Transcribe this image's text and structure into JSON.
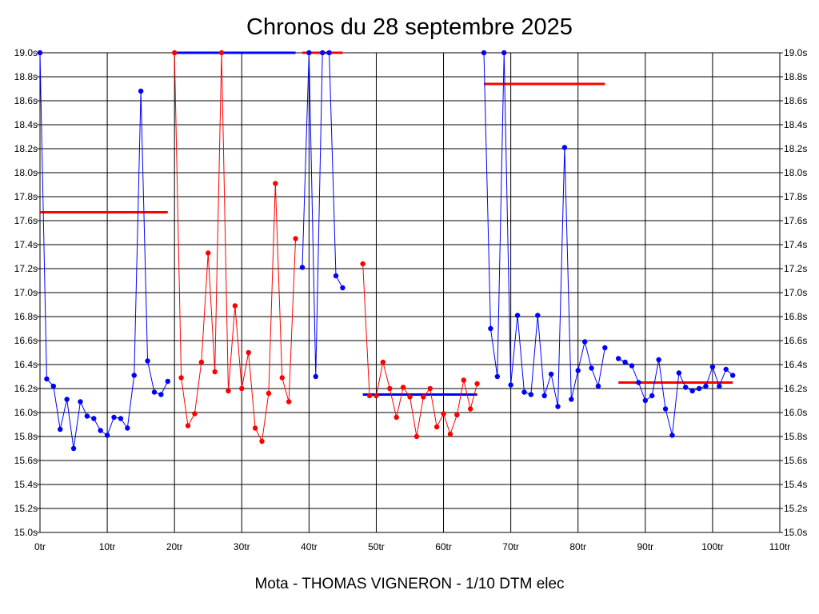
{
  "chart_data": {
    "type": "line",
    "title": "Chronos du 28 septembre 2025",
    "caption": "Mota - THOMAS VIGNERON - 1/10 DTM elec",
    "xlim": [
      0,
      110
    ],
    "ylim": [
      15.0,
      19.0
    ],
    "x_ticks": [
      {
        "value": 0,
        "label": "0tr"
      },
      {
        "value": 10,
        "label": "10tr"
      },
      {
        "value": 20,
        "label": "20tr"
      },
      {
        "value": 30,
        "label": "30tr"
      },
      {
        "value": 40,
        "label": "40tr"
      },
      {
        "value": 50,
        "label": "50tr"
      },
      {
        "value": 60,
        "label": "60tr"
      },
      {
        "value": 70,
        "label": "70tr"
      },
      {
        "value": 80,
        "label": "80tr"
      },
      {
        "value": 90,
        "label": "90tr"
      },
      {
        "value": 100,
        "label": "100tr"
      },
      {
        "value": 110,
        "label": "110tr"
      }
    ],
    "y_ticks": [
      {
        "value": 15.0,
        "label": "15.0s"
      },
      {
        "value": 15.2,
        "label": "15.2s"
      },
      {
        "value": 15.4,
        "label": "15.4s"
      },
      {
        "value": 15.6,
        "label": "15.6s"
      },
      {
        "value": 15.8,
        "label": "15.8s"
      },
      {
        "value": 16.0,
        "label": "16.0s"
      },
      {
        "value": 16.2,
        "label": "16.2s"
      },
      {
        "value": 16.4,
        "label": "16.4s"
      },
      {
        "value": 16.6,
        "label": "16.6s"
      },
      {
        "value": 16.8,
        "label": "16.8s"
      },
      {
        "value": 17.0,
        "label": "17.0s"
      },
      {
        "value": 17.2,
        "label": "17.2s"
      },
      {
        "value": 17.4,
        "label": "17.4s"
      },
      {
        "value": 17.6,
        "label": "17.6s"
      },
      {
        "value": 17.8,
        "label": "17.8s"
      },
      {
        "value": 18.0,
        "label": "18.0s"
      },
      {
        "value": 18.2,
        "label": "18.2s"
      },
      {
        "value": 18.4,
        "label": "18.4s"
      },
      {
        "value": 18.6,
        "label": "18.6s"
      },
      {
        "value": 18.8,
        "label": "18.8s"
      },
      {
        "value": 19.0,
        "label": "19.0s"
      }
    ],
    "grid": true,
    "colors": {
      "blue": "#0000ff",
      "red": "#ff0000",
      "grid": "#000000"
    },
    "series": [
      {
        "color": "#0000ff",
        "x": [
          0,
          1,
          2,
          3,
          4,
          5,
          6,
          7,
          8,
          9,
          10,
          11,
          12,
          13,
          14,
          15,
          16,
          17,
          18,
          19
        ],
        "y": [
          19.0,
          16.28,
          16.22,
          15.86,
          16.11,
          15.7,
          16.09,
          15.97,
          15.95,
          15.85,
          15.81,
          15.96,
          15.95,
          15.87,
          16.31,
          18.68,
          16.43,
          16.17,
          16.15,
          16.26
        ]
      },
      {
        "color": "#ff0000",
        "x": [
          20,
          21,
          22,
          23,
          24,
          25,
          26,
          27,
          28,
          29,
          30,
          31,
          32,
          33,
          34,
          35,
          36,
          37,
          38
        ],
        "y": [
          19.0,
          16.29,
          15.89,
          15.99,
          16.42,
          17.33,
          16.34,
          19.0,
          16.18,
          16.89,
          16.2,
          16.5,
          15.87,
          15.76,
          16.16,
          17.91,
          16.29,
          16.09,
          17.45
        ]
      },
      {
        "color": "#0000ff",
        "x": [
          39,
          40,
          41,
          42,
          43,
          44,
          45
        ],
        "y": [
          17.21,
          19.0,
          16.3,
          19.0,
          19.0,
          17.14,
          17.04
        ]
      },
      {
        "color": "#ff0000",
        "x": [
          48,
          49,
          50,
          51,
          52,
          53,
          54,
          55,
          56,
          57,
          58,
          59,
          60,
          61,
          62,
          63,
          64,
          65
        ],
        "y": [
          17.24,
          16.14,
          16.14,
          16.42,
          16.2,
          15.96,
          16.21,
          16.13,
          15.8,
          16.13,
          16.2,
          15.88,
          15.99,
          15.82,
          15.98,
          16.27,
          16.03,
          16.24
        ]
      },
      {
        "color": "#0000ff",
        "x": [
          66,
          67,
          68,
          69,
          70,
          71,
          72,
          73,
          74,
          75,
          76,
          77,
          78,
          79,
          80,
          81,
          82,
          83,
          84
        ],
        "y": [
          19.0,
          16.7,
          16.3,
          19.0,
          16.23,
          16.81,
          16.17,
          16.15,
          16.81,
          16.14,
          16.32,
          16.05,
          18.21,
          16.11,
          16.35,
          16.59,
          16.37,
          16.22,
          16.54
        ]
      },
      {
        "color": "#0000ff",
        "x": [
          86,
          87,
          88,
          89,
          90,
          91,
          92,
          93,
          94,
          95,
          96,
          97,
          98,
          99,
          100,
          101,
          102,
          103
        ],
        "y": [
          16.45,
          16.42,
          16.39,
          16.25,
          16.1,
          16.14,
          16.44,
          16.03,
          15.81,
          16.33,
          16.21,
          16.18,
          16.2,
          16.22,
          16.38,
          16.22,
          16.36,
          16.31
        ]
      }
    ],
    "average_lines": [
      {
        "color": "#ff0000",
        "x_start": 0,
        "x_end": 19,
        "value": 17.67
      },
      {
        "color": "#0000ff",
        "x_start": 20,
        "x_end": 38,
        "value": 19.0
      },
      {
        "color": "#ff0000",
        "x_start": 39,
        "x_end": 45,
        "value": 19.0
      },
      {
        "color": "#0000ff",
        "x_start": 48,
        "x_end": 65,
        "value": 16.15
      },
      {
        "color": "#ff0000",
        "x_start": 66,
        "x_end": 84,
        "value": 18.74
      },
      {
        "color": "#ff0000",
        "x_start": 86,
        "x_end": 103,
        "value": 16.25
      }
    ]
  }
}
